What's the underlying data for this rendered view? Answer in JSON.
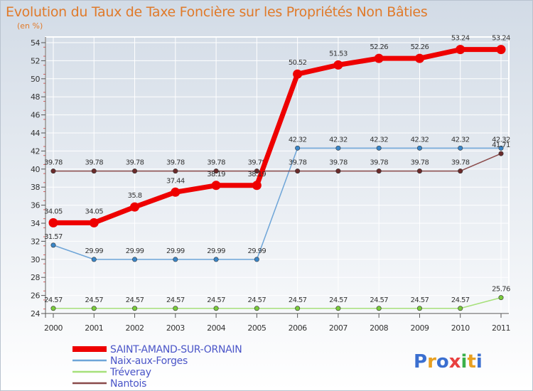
{
  "chart_data": {
    "type": "line",
    "title": "Evolution du Taux de Taxe Foncière sur les Propriétés Non Bâties",
    "ylabel": "(en %)",
    "xlabel": "",
    "ylim": [
      24,
      54
    ],
    "yticks": [
      24,
      26,
      28,
      30,
      32,
      34,
      36,
      38,
      40,
      42,
      44,
      46,
      48,
      50,
      52,
      54
    ],
    "categories": [
      "2000",
      "2001",
      "2002",
      "2003",
      "2004",
      "2005",
      "2006",
      "2007",
      "2008",
      "2009",
      "2010",
      "2011"
    ],
    "series": [
      {
        "name": "SAINT-AMAND-SUR-ORNAIN",
        "color": "#ee0000",
        "marker": "#ee0000",
        "emphasis": true,
        "values": [
          34.05,
          34.05,
          35.8,
          37.44,
          38.19,
          38.19,
          50.52,
          51.53,
          52.26,
          52.26,
          53.24,
          53.24
        ],
        "labels": [
          "34.05",
          "34.05",
          "35.8",
          "37.44",
          "38.19",
          "38.19",
          "50.52",
          "51.53",
          "52.26",
          "52.26",
          "53.24",
          "53.24"
        ]
      },
      {
        "name": "Naix-aux-Forges",
        "color": "#6ea5d8",
        "marker": "#3a86c8",
        "values": [
          31.57,
          29.99,
          29.99,
          29.99,
          29.99,
          29.99,
          42.32,
          42.32,
          42.32,
          42.32,
          42.32,
          42.32
        ],
        "labels": [
          "31.57",
          "29.99",
          "29.99",
          "29.99",
          "29.99",
          "29.99",
          "42.32",
          "42.32",
          "42.32",
          "42.32",
          "42.32",
          "42.32"
        ]
      },
      {
        "name": "Tréveray",
        "color": "#a6e07a",
        "marker": "#7acb3c",
        "values": [
          24.57,
          24.57,
          24.57,
          24.57,
          24.57,
          24.57,
          24.57,
          24.57,
          24.57,
          24.57,
          24.57,
          25.76
        ],
        "labels": [
          "24.57",
          "24.57",
          "24.57",
          "24.57",
          "24.57",
          "24.57",
          "24.57",
          "24.57",
          "24.57",
          "24.57",
          "24.57",
          "25.76"
        ]
      },
      {
        "name": "Nantois",
        "color": "#8a4a4a",
        "marker": "#6b2b2b",
        "values": [
          39.78,
          39.78,
          39.78,
          39.78,
          39.78,
          39.78,
          39.78,
          39.78,
          39.78,
          39.78,
          39.78,
          41.71
        ],
        "labels": [
          "39.78",
          "39.78",
          "39.78",
          "39.78",
          "39.78",
          "39.78",
          "39.78",
          "39.78",
          "39.78",
          "39.78",
          "39.78",
          "41.71"
        ]
      }
    ]
  },
  "logo": {
    "text": "Proxiti",
    "colors": [
      "#3a6fd0",
      "#e8a020",
      "#3a6fd0",
      "#e84040",
      "#3ab04a",
      "#e8a020",
      "#3a6fd0"
    ]
  }
}
